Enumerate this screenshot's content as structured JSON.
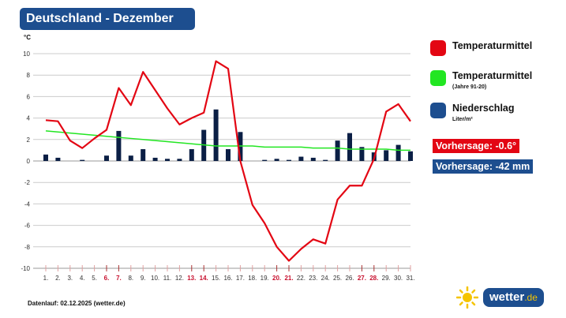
{
  "title": "Deutschland - Dezember",
  "legend": [
    {
      "label": "Temperaturmittel",
      "sub": "",
      "color": "#e30613"
    },
    {
      "label": "Temperaturmittel",
      "sub": "(Jahre 91-20)",
      "color": "#22e622"
    },
    {
      "label": "Niederschlag",
      "sub": "Liter/m²",
      "color": "#1d4e8f"
    }
  ],
  "forecast_temp": "Vorhersage: -0.6°",
  "forecast_precip": "Vorhersage: -42 mm",
  "footer": "Datenlauf: 02.12.2025 (wetter.de)",
  "logo": {
    "main": "wetter",
    "tld": ".de"
  },
  "colors": {
    "temp": "#e30613",
    "normal": "#22e622",
    "precip": "#0b1f45",
    "weekend": "#c8102e",
    "brand": "#1d4e8f"
  },
  "chart_data": {
    "type": "bar+line",
    "ylabel": "°C",
    "ylim": [
      -10,
      10
    ],
    "yticks": [
      10,
      8,
      6,
      4,
      2,
      0,
      -2,
      -4,
      -6,
      -8,
      -10
    ],
    "grid": true,
    "categories": [
      "1.",
      "2.",
      "3.",
      "4.",
      "5.",
      "6.",
      "7.",
      "8.",
      "9.",
      "10.",
      "11.",
      "12.",
      "13.",
      "14.",
      "15.",
      "16.",
      "17.",
      "18.",
      "19.",
      "20.",
      "21.",
      "22.",
      "23.",
      "24.",
      "25.",
      "26.",
      "27.",
      "28.",
      "29.",
      "30.",
      "31."
    ],
    "weekend_days": [
      6,
      7,
      13,
      14,
      20,
      21,
      27,
      28
    ],
    "series": [
      {
        "name": "Temperaturmittel",
        "type": "line",
        "values": [
          3.8,
          3.7,
          1.9,
          1.2,
          2.1,
          2.9,
          6.8,
          5.2,
          8.3,
          6.6,
          4.9,
          3.4,
          4.0,
          4.5,
          9.3,
          8.6,
          0.0,
          -4.1,
          -5.8,
          -8.0,
          -9.3,
          -8.2,
          -7.3,
          -7.7,
          -3.6,
          -2.3,
          -2.3,
          0.2,
          4.6,
          5.3,
          3.7
        ]
      },
      {
        "name": "Temperaturmittel (Jahre 91-20)",
        "type": "line",
        "values": [
          2.8,
          2.7,
          2.6,
          2.5,
          2.4,
          2.3,
          2.2,
          2.1,
          2.0,
          1.9,
          1.8,
          1.7,
          1.6,
          1.5,
          1.4,
          1.4,
          1.4,
          1.4,
          1.3,
          1.3,
          1.3,
          1.3,
          1.2,
          1.2,
          1.2,
          1.1,
          1.1,
          1.1,
          1.1,
          1.0,
          1.0
        ]
      },
      {
        "name": "Niederschlag",
        "type": "bar",
        "values": [
          0.6,
          0.3,
          0,
          0.1,
          0,
          0.5,
          2.8,
          0.5,
          1.1,
          0.3,
          0.2,
          0.2,
          1.1,
          2.9,
          4.8,
          1.1,
          2.7,
          0,
          0.1,
          0.2,
          0.1,
          0.4,
          0.3,
          0.1,
          1.9,
          2.6,
          1.3,
          0.8,
          1.0,
          1.5,
          0.9
        ]
      }
    ]
  }
}
